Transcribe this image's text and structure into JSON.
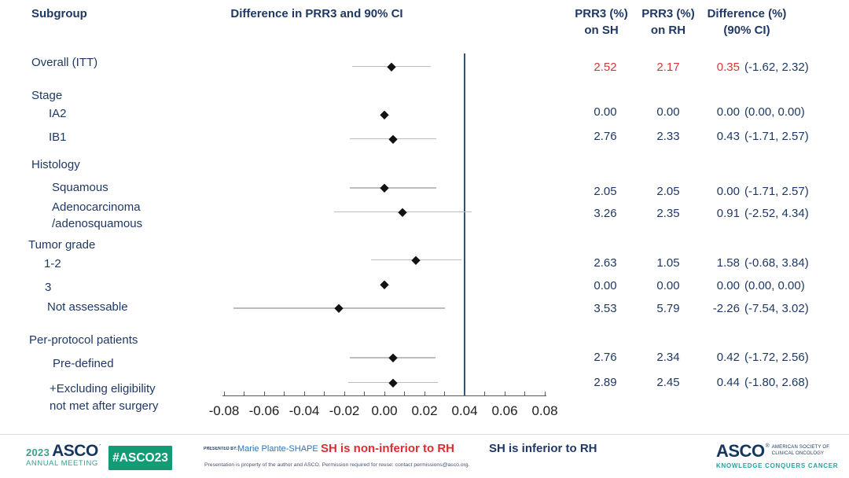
{
  "colors": {
    "navy": "#1F3864",
    "red": "#D7363C",
    "reference_line": "#2B5278",
    "ci_line": "#BDBDBD",
    "marker": "#121212",
    "teal": "#3AA18C",
    "badge_green": "#129C76",
    "presenter_blue": "#2E74B5",
    "kcc_teal": "#28A1A6"
  },
  "header": {
    "subgroup": "Subgroup",
    "plot_title": "Difference in PRR3 and 90% CI",
    "sh_line1": "PRR3 (%)",
    "sh_line2": "on SH",
    "rh_line1": "PRR3 (%)",
    "rh_line2": "on RH",
    "diff_line1": "Difference (%)",
    "diff_line2": "(90% CI)"
  },
  "chart_data": {
    "type": "scatter",
    "subtype": "forest-plot",
    "title": "Difference in PRR3 and 90% CI",
    "x_axis": {
      "min": -0.08,
      "max": 0.08,
      "minor_step": 0.01,
      "major_step": 0.02,
      "tick_labels": [
        "-0.08",
        "-0.06",
        "-0.04",
        "-0.02",
        "0.00",
        "0.02",
        "0.04",
        "0.06",
        "0.08"
      ]
    },
    "reference_line_x": 0.04,
    "rows": [
      {
        "id": "overall",
        "kind": "data",
        "lines": [
          "Overall (ITT)"
        ],
        "sh": "2.52",
        "rh": "2.17",
        "diff": "0.35",
        "ci": "(-1.62, 2.32)",
        "est": 0.0035,
        "lo": -0.0162,
        "hi": 0.0232,
        "highlight": true
      },
      {
        "id": "stage",
        "kind": "header",
        "lines": [
          "Stage"
        ]
      },
      {
        "id": "ia2",
        "kind": "data",
        "lines": [
          "IA2"
        ],
        "sh": "0.00",
        "rh": "0.00",
        "diff": "0.00",
        "ci": "(0.00, 0.00)",
        "est": 0,
        "lo": 0,
        "hi": 0
      },
      {
        "id": "ib1",
        "kind": "data",
        "lines": [
          "IB1"
        ],
        "sh": "2.76",
        "rh": "2.33",
        "diff": "0.43",
        "ci": "(-1.71, 2.57)",
        "est": 0.0043,
        "lo": -0.0171,
        "hi": 0.0257
      },
      {
        "id": "histology",
        "kind": "header",
        "lines": [
          "Histology"
        ]
      },
      {
        "id": "squamous",
        "kind": "data",
        "lines": [
          "Squamous"
        ],
        "sh": "2.05",
        "rh": "2.05",
        "diff": "0.00",
        "ci": "(-1.71, 2.57)",
        "est": 0.0,
        "lo": -0.0171,
        "hi": 0.0257
      },
      {
        "id": "adeno",
        "kind": "data",
        "lines": [
          "Adenocarcinoma",
          "/adenosquamous"
        ],
        "sh": "3.26",
        "rh": "2.35",
        "diff": "0.91",
        "ci": "(-2.52, 4.34)",
        "est": 0.0091,
        "lo": -0.0252,
        "hi": 0.0434
      },
      {
        "id": "grade",
        "kind": "header",
        "lines": [
          "Tumor grade"
        ]
      },
      {
        "id": "grade12",
        "kind": "data",
        "lines": [
          "1-2"
        ],
        "sh": "2.63",
        "rh": "1.05",
        "diff": "1.58",
        "ci": "(-0.68, 3.84)",
        "est": 0.0158,
        "lo": -0.0068,
        "hi": 0.0384
      },
      {
        "id": "grade3",
        "kind": "data",
        "lines": [
          "3"
        ],
        "sh": "0.00",
        "rh": "0.00",
        "diff": "0.00",
        "ci": "(0.00, 0.00)",
        "est": 0,
        "lo": 0,
        "hi": 0
      },
      {
        "id": "notassess",
        "kind": "data",
        "lines": [
          "Not assessable"
        ],
        "sh": "3.53",
        "rh": "5.79",
        "diff": "-2.26",
        "ci": "(-7.54, 3.02)",
        "est": -0.0226,
        "lo": -0.0754,
        "hi": 0.0302
      },
      {
        "id": "perprotocol",
        "kind": "header",
        "lines": [
          "Per-protocol patients"
        ]
      },
      {
        "id": "predefined",
        "kind": "data",
        "lines": [
          "Pre-defined"
        ],
        "sh": "2.76",
        "rh": "2.34",
        "diff": "0.42",
        "ci": "(-1.72, 2.56)",
        "est": 0.0042,
        "lo": -0.0172,
        "hi": 0.0256
      },
      {
        "id": "excluding",
        "kind": "data",
        "lines": [
          "+Excluding eligibility",
          "not met after surgery"
        ],
        "sh": "2.89",
        "rh": "2.45",
        "diff": "0.44",
        "ci": "(-1.80, 2.68)",
        "est": 0.0044,
        "lo": -0.018,
        "hi": 0.0268
      }
    ]
  },
  "footer": {
    "year": "2023",
    "asco": "ASCO",
    "annual_meeting": "ANNUAL MEETING",
    "hashtag": "#ASCO23",
    "presented_by": "PRESENTED BY:",
    "presenter": "Marie Plante-SHAPE",
    "noninferior_note": "SH is non-inferior to RH",
    "inferior_note": "SH is inferior to RH",
    "disclaimer": "Presentation is property of the author and ASCO. Permission required for reuse: contact permissions@asco.org.",
    "asco_right": "ASCO",
    "society_line1": "AMERICAN SOCIETY OF",
    "society_line2": "CLINICAL ONCOLOGY",
    "kcc": "KNOWLEDGE CONQUERS CANCER"
  }
}
